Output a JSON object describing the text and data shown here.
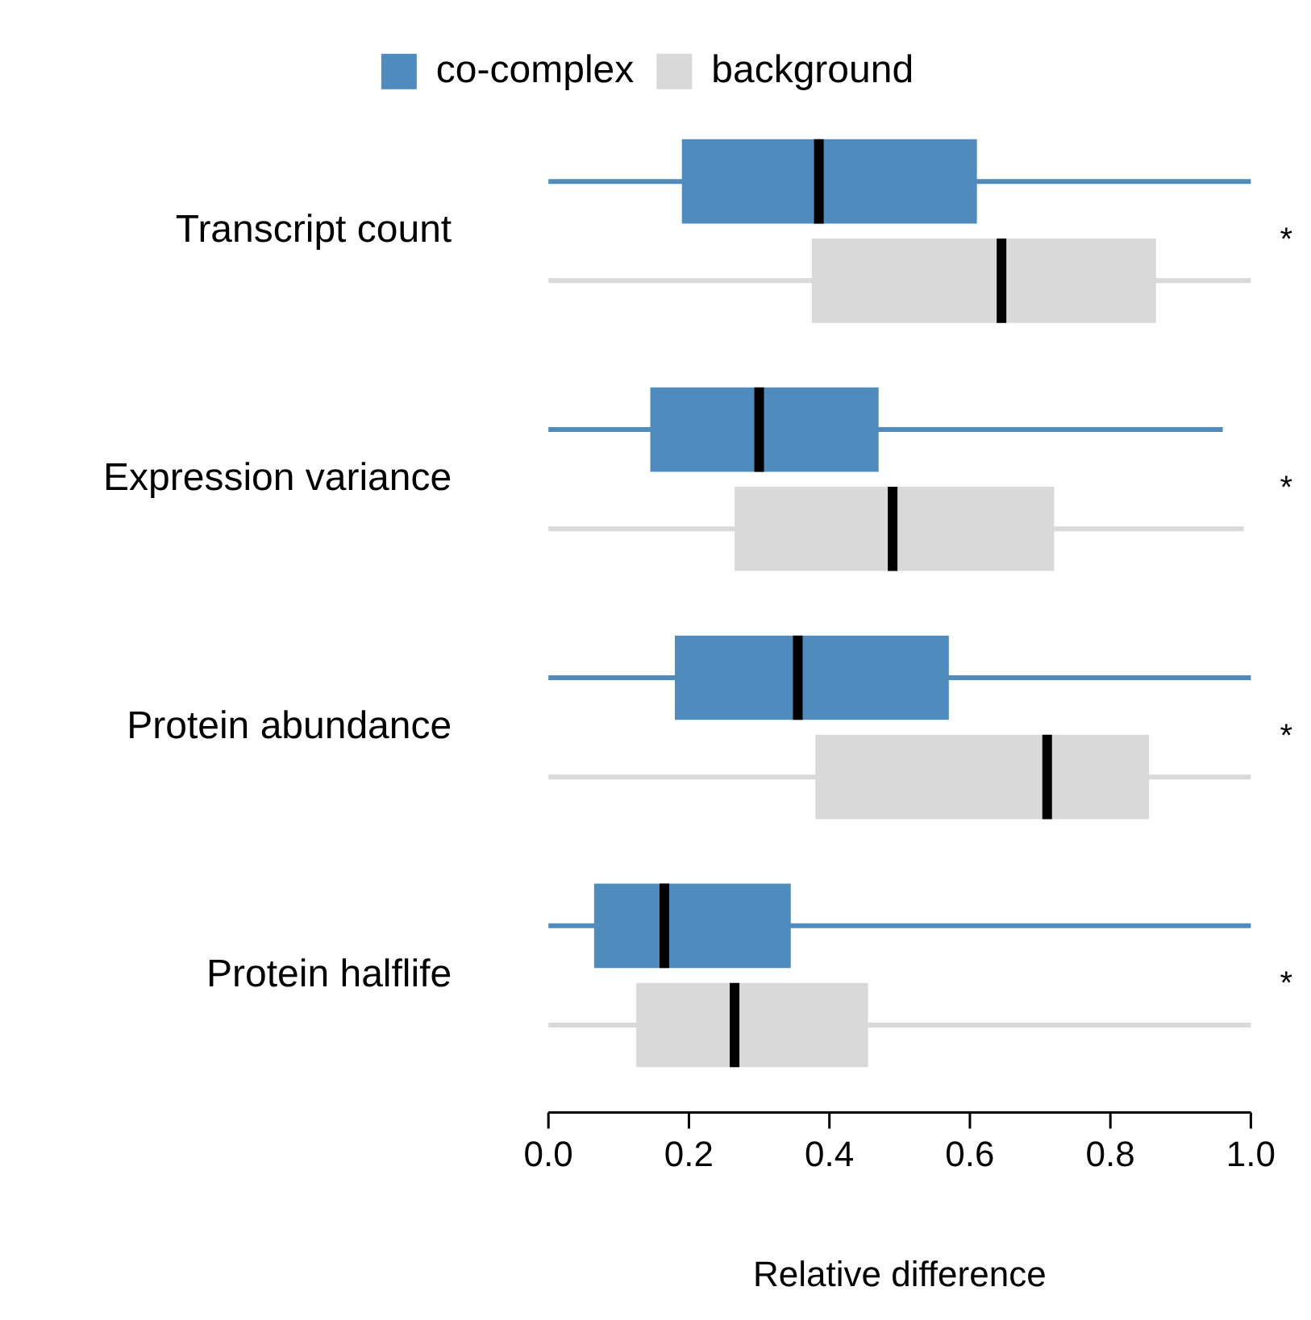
{
  "chart_data": {
    "type": "box",
    "orientation": "horizontal",
    "xlabel": "Relative difference",
    "categories": [
      "Transcript count",
      "Expression variance",
      "Protein abundance",
      "Protein halflife"
    ],
    "series": [
      {
        "name": "co-complex",
        "color": "#4f8bbd",
        "boxes": [
          {
            "low": 0,
            "q1": 0.19,
            "median": 0.385,
            "q3": 0.61,
            "high": 1
          },
          {
            "low": 0,
            "q1": 0.145,
            "median": 0.3,
            "q3": 0.47,
            "high": 0.96
          },
          {
            "low": 0,
            "q1": 0.18,
            "median": 0.355,
            "q3": 0.57,
            "high": 1
          },
          {
            "low": 0,
            "q1": 0.065,
            "median": 0.165,
            "q3": 0.345,
            "high": 1
          }
        ]
      },
      {
        "name": "background",
        "color": "#d9d9d9",
        "boxes": [
          {
            "low": 0,
            "q1": 0.375,
            "median": 0.645,
            "q3": 0.865,
            "high": 1
          },
          {
            "low": 0,
            "q1": 0.265,
            "median": 0.49,
            "q3": 0.72,
            "high": 0.99
          },
          {
            "low": 0,
            "q1": 0.38,
            "median": 0.71,
            "q3": 0.855,
            "high": 1
          },
          {
            "low": 0,
            "q1": 0.125,
            "median": 0.265,
            "q3": 0.455,
            "high": 1
          }
        ]
      }
    ],
    "xlim": [
      0,
      1
    ],
    "xticks": [
      {
        "value": 0,
        "label": "0.0"
      },
      {
        "value": 0.2,
        "label": "0.2"
      },
      {
        "value": 0.4,
        "label": "0.4"
      },
      {
        "value": 0.6,
        "label": "0.6"
      },
      {
        "value": 0.8,
        "label": "0.8"
      },
      {
        "value": 1,
        "label": "1.0"
      }
    ],
    "legend": "top",
    "grid": false,
    "annotations": [
      "*",
      "*",
      "*",
      "*"
    ]
  }
}
